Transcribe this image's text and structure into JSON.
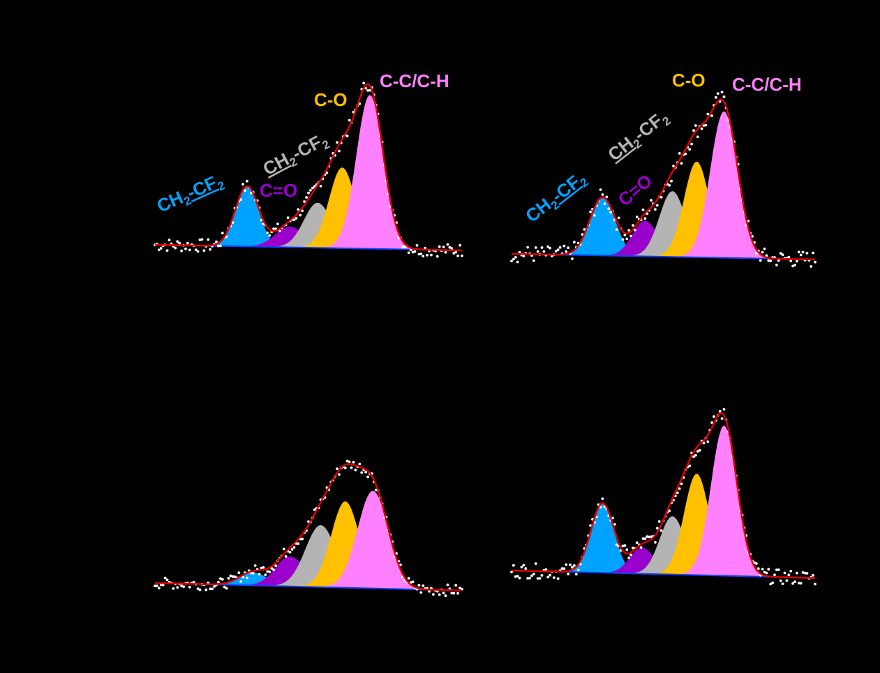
{
  "colors": {
    "background": "#000000",
    "fit_envelope": "#e00000",
    "baseline": "#1040ff",
    "data_points": "#ffffff",
    "cf2": "#00a2ff",
    "co_double": "#9900cc",
    "ch2": "#b4b4b4",
    "co_single": "#ffc000",
    "cc": "#ff80ff"
  },
  "labels": {
    "cf2_main": "CH",
    "cf2_sub": "2",
    "cf2_dash": "-CF",
    "cf2_sub2": "2",
    "co_double": "C=O",
    "ch2_main": "CH",
    "ch2_sub": "2",
    "ch2_dash": "-CF",
    "ch2_sub2": "2",
    "co_single": "C-O",
    "cc": "C-C/C-H"
  },
  "chart_data": [
    {
      "type": "area",
      "panel": "top-left",
      "x_range": [
        0,
        100
      ],
      "y_range": [
        0,
        100
      ],
      "baseline": [
        0,
        3
      ],
      "noise": 3.5,
      "peaks": [
        {
          "component": "cf2",
          "center": 30,
          "height": 32,
          "width": 3.8
        },
        {
          "component": "co_double",
          "center": 44,
          "height": 11,
          "width": 4.8
        },
        {
          "component": "ch2",
          "center": 53,
          "height": 24,
          "width": 4.5
        },
        {
          "component": "co_single",
          "center": 61,
          "height": 43,
          "width": 4.3
        },
        {
          "component": "cc",
          "center": 70,
          "height": 82,
          "width": 4.4
        }
      ],
      "shown_labels": [
        "cf2",
        "co_double",
        "ch2",
        "co_single",
        "cc"
      ]
    },
    {
      "type": "area",
      "panel": "top-right",
      "x_range": [
        0,
        100
      ],
      "y_range": [
        0,
        100
      ],
      "baseline": [
        0,
        3
      ],
      "noise": 4.5,
      "peaks": [
        {
          "component": "cf2",
          "center": 30,
          "height": 31,
          "width": 4.2
        },
        {
          "component": "co_double",
          "center": 44,
          "height": 19,
          "width": 4.2
        },
        {
          "component": "ch2",
          "center": 53,
          "height": 35,
          "width": 4.3
        },
        {
          "component": "co_single",
          "center": 61,
          "height": 51,
          "width": 4.2
        },
        {
          "component": "cc",
          "center": 70,
          "height": 78,
          "width": 4.5
        }
      ],
      "shown_labels": [
        "cf2",
        "co_double",
        "ch2",
        "co_single",
        "cc"
      ]
    },
    {
      "type": "area",
      "panel": "bottom-left",
      "x_range": [
        0,
        100
      ],
      "y_range": [
        0,
        100
      ],
      "baseline": [
        0,
        4
      ],
      "noise": 3.0,
      "peaks": [
        {
          "component": "cf2",
          "center": 32,
          "height": 7,
          "width": 4.5
        },
        {
          "component": "co_double",
          "center": 44,
          "height": 16,
          "width": 4.8
        },
        {
          "component": "ch2",
          "center": 54,
          "height": 33,
          "width": 5.0
        },
        {
          "component": "co_single",
          "center": 62,
          "height": 46,
          "width": 4.6
        },
        {
          "component": "cc",
          "center": 71,
          "height": 52,
          "width": 5.0
        }
      ],
      "shown_labels": []
    },
    {
      "type": "area",
      "panel": "bottom-right",
      "x_range": [
        0,
        100
      ],
      "y_range": [
        0,
        100
      ],
      "baseline": [
        0,
        4
      ],
      "noise": 4.0,
      "peaks": [
        {
          "component": "cf2",
          "center": 30,
          "height": 37,
          "width": 3.8
        },
        {
          "component": "co_double",
          "center": 43,
          "height": 14,
          "width": 4.0
        },
        {
          "component": "ch2",
          "center": 53,
          "height": 31,
          "width": 4.2
        },
        {
          "component": "co_single",
          "center": 61,
          "height": 54,
          "width": 4.2
        },
        {
          "component": "cc",
          "center": 70,
          "height": 80,
          "width": 4.3
        }
      ],
      "shown_labels": []
    }
  ]
}
